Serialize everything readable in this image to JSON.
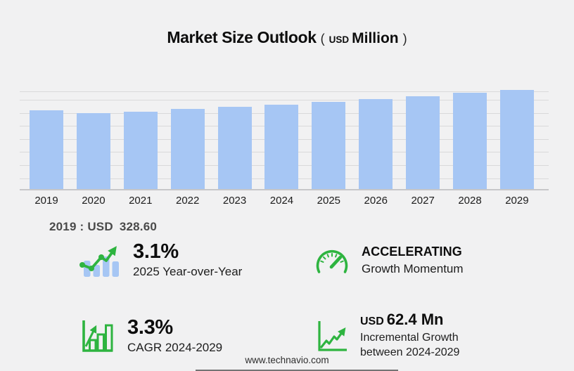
{
  "title": {
    "main": "Market Size Outlook",
    "paren_open": "(",
    "currency": "USD",
    "unit": "Million",
    "paren_close": ")"
  },
  "chart_data": {
    "type": "bar",
    "title": "Market Size Outlook (USD Million)",
    "xlabel": "",
    "ylabel": "",
    "categories": [
      "2019",
      "2020",
      "2021",
      "2022",
      "2023",
      "2024",
      "2025",
      "2026",
      "2027",
      "2028",
      "2029"
    ],
    "values": [
      328.6,
      318.9,
      324.5,
      334.8,
      344.2,
      353.7,
      364.7,
      376.4,
      388.7,
      401.9,
      416.1
    ],
    "ylim": [
      0,
      430
    ],
    "grid": true,
    "legend": false,
    "bar_color": "#a6c6f4",
    "annotations": [
      "2019 : USD 328.60"
    ]
  },
  "base_note": {
    "label": "2019 : USD",
    "value": "328.60"
  },
  "stats": {
    "yoy": {
      "value": "3.1%",
      "label": "2025 Year-over-Year"
    },
    "momentum": {
      "value": "ACCELERATING",
      "label": "Growth Momentum"
    },
    "cagr": {
      "value": "3.3%",
      "label": "CAGR 2024-2029"
    },
    "incremental": {
      "prefix": "USD",
      "value": "62.4 Mn",
      "label_line1": "Incremental Growth",
      "label_line2": "between 2024-2029"
    }
  },
  "footer": {
    "url": "www.technavio.com"
  },
  "colors": {
    "background": "#f1f1f2",
    "bar_blue": "#a6c6f4",
    "accent_green": "#2eb440",
    "gridline": "#d9d9da",
    "axis_line": "#c7c7c9",
    "text_dark": "#0d0d0d",
    "note_text": "#4a4a4a"
  }
}
